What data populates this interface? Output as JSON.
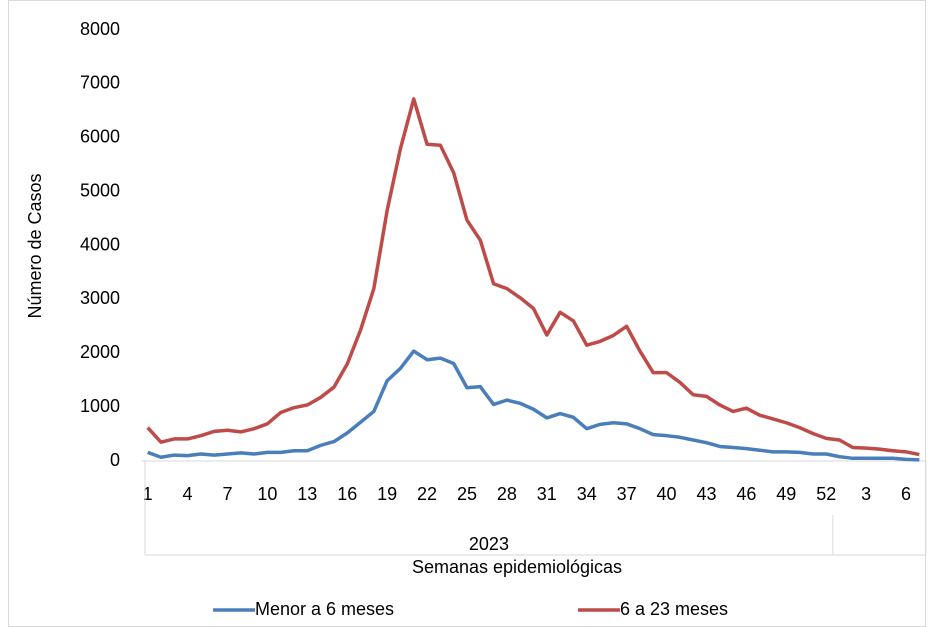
{
  "chart_data": {
    "type": "line",
    "y_label": "Número de Casos",
    "x_label": "Semanas epidemiológicas",
    "categories": [
      "1",
      null,
      null,
      "4",
      null,
      null,
      "7",
      null,
      null,
      "10",
      null,
      null,
      "13",
      null,
      null,
      "16",
      null,
      null,
      "19",
      null,
      null,
      "22",
      null,
      null,
      "25",
      null,
      null,
      "28",
      null,
      null,
      "31",
      null,
      null,
      "34",
      null,
      null,
      "37",
      null,
      null,
      "40",
      null,
      null,
      "43",
      null,
      null,
      "46",
      null,
      null,
      "49",
      null,
      null,
      "52",
      null,
      null,
      "3",
      null,
      null,
      "6",
      null
    ],
    "x_groups": [
      {
        "label": "2023",
        "count": 52
      },
      {
        "label": null,
        "count": 7
      }
    ],
    "series": [
      {
        "name": "Menor a 6 meses",
        "color": "#4a7ebb",
        "values": [
          160,
          70,
          110,
          100,
          130,
          110,
          130,
          150,
          130,
          160,
          160,
          190,
          190,
          290,
          360,
          520,
          720,
          920,
          1490,
          1720,
          2040,
          1880,
          1910,
          1810,
          1360,
          1380,
          1050,
          1130,
          1070,
          960,
          800,
          880,
          810,
          600,
          680,
          710,
          690,
          600,
          490,
          470,
          440,
          390,
          340,
          270,
          250,
          230,
          200,
          170,
          170,
          160,
          130,
          130,
          80,
          50,
          50,
          50,
          50,
          30,
          20
        ]
      },
      {
        "name": "6 a 23 meses",
        "color": "#be4b48",
        "values": [
          620,
          350,
          410,
          410,
          470,
          550,
          570,
          540,
          600,
          690,
          900,
          990,
          1040,
          1180,
          1370,
          1800,
          2430,
          3200,
          4650,
          5800,
          6720,
          5880,
          5860,
          5350,
          4470,
          4100,
          3290,
          3200,
          3030,
          2830,
          2340,
          2760,
          2600,
          2150,
          2220,
          2330,
          2500,
          2040,
          1640,
          1640,
          1460,
          1230,
          1200,
          1040,
          920,
          980,
          850,
          780,
          710,
          620,
          510,
          420,
          390,
          250,
          240,
          220,
          190,
          170,
          120
        ]
      }
    ],
    "ylim": [
      0,
      8000
    ],
    "yticks": [
      0,
      1000,
      2000,
      3000,
      4000,
      5000,
      6000,
      7000,
      8000
    ],
    "legend": "bottom"
  }
}
